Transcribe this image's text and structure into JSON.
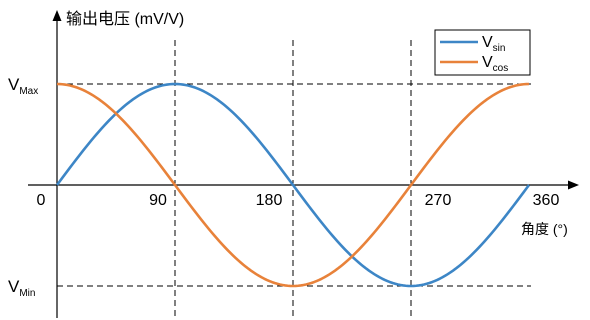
{
  "chart_data": {
    "type": "line",
    "ylabel": "输出电压 (mV/V)",
    "xlabel": "角度 (°)",
    "xlim": [
      0,
      360
    ],
    "ylim": [
      -1,
      1
    ],
    "x_ticks": [
      {
        "value": 0,
        "label": "0"
      },
      {
        "value": 90,
        "label": "90"
      },
      {
        "value": 180,
        "label": "180"
      },
      {
        "value": 270,
        "label": "270"
      },
      {
        "value": 360,
        "label": "360"
      }
    ],
    "y_ticks": [
      {
        "value": 1,
        "main": "V",
        "sub": "Max"
      },
      {
        "value": -1,
        "main": "V",
        "sub": "Min"
      }
    ],
    "guide_lines_x": [
      90,
      180,
      270
    ],
    "guide_lines_y": [
      1,
      -1
    ],
    "grid": false,
    "legend_position": "top-right",
    "series": [
      {
        "name": "sin",
        "legend_main": "V",
        "legend_sub": "sin",
        "color": "#3d86c6",
        "x": [
          0,
          30,
          60,
          90,
          120,
          150,
          180,
          210,
          240,
          270,
          300,
          330,
          360
        ],
        "values": [
          0,
          0.5,
          0.866,
          1,
          0.866,
          0.5,
          0,
          -0.5,
          -0.866,
          -1,
          -0.866,
          -0.5,
          0
        ]
      },
      {
        "name": "cos",
        "legend_main": "V",
        "legend_sub": "cos",
        "color": "#e8823a",
        "x": [
          0,
          30,
          60,
          90,
          120,
          150,
          180,
          210,
          240,
          270,
          300,
          330,
          360
        ],
        "values": [
          1,
          0.866,
          0.5,
          0,
          -0.5,
          -0.866,
          -1,
          -0.866,
          -0.5,
          0,
          0.5,
          0.866,
          1
        ]
      }
    ]
  }
}
